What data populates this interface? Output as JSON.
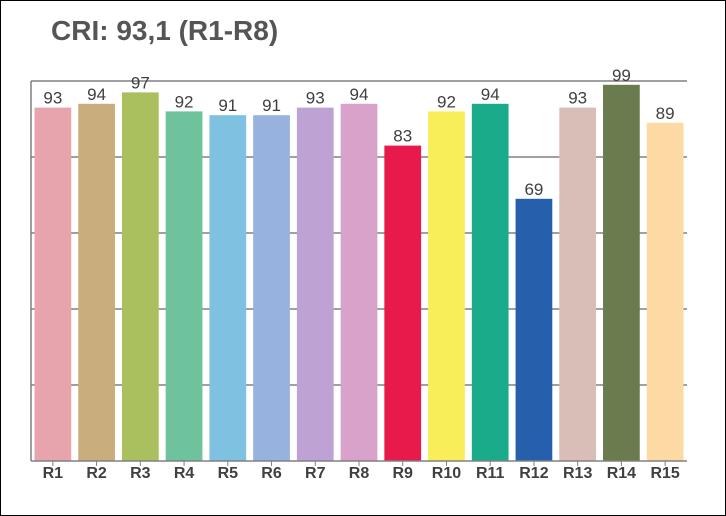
{
  "chart_data": {
    "type": "bar",
    "title": "CRI: 93,1 (R1-R8)",
    "categories": [
      "R1",
      "R2",
      "R3",
      "R4",
      "R5",
      "R6",
      "R7",
      "R8",
      "R9",
      "R10",
      "R11",
      "R12",
      "R13",
      "R14",
      "R15"
    ],
    "values": [
      93,
      94,
      97,
      92,
      91,
      91,
      93,
      94,
      83,
      92,
      94,
      69,
      93,
      99,
      89
    ],
    "colors": [
      "#E8A4AC",
      "#C9AD7C",
      "#AABF5E",
      "#6EC39D",
      "#7EC1E0",
      "#98B2E0",
      "#BFA2D4",
      "#D9A2CB",
      "#E8194B",
      "#F8EE5A",
      "#1AAC8A",
      "#2660AD",
      "#D8BEB6",
      "#6A7B4E",
      "#FDD9A4"
    ],
    "ylim": [
      0,
      100
    ],
    "grid": true,
    "legend": "none"
  }
}
